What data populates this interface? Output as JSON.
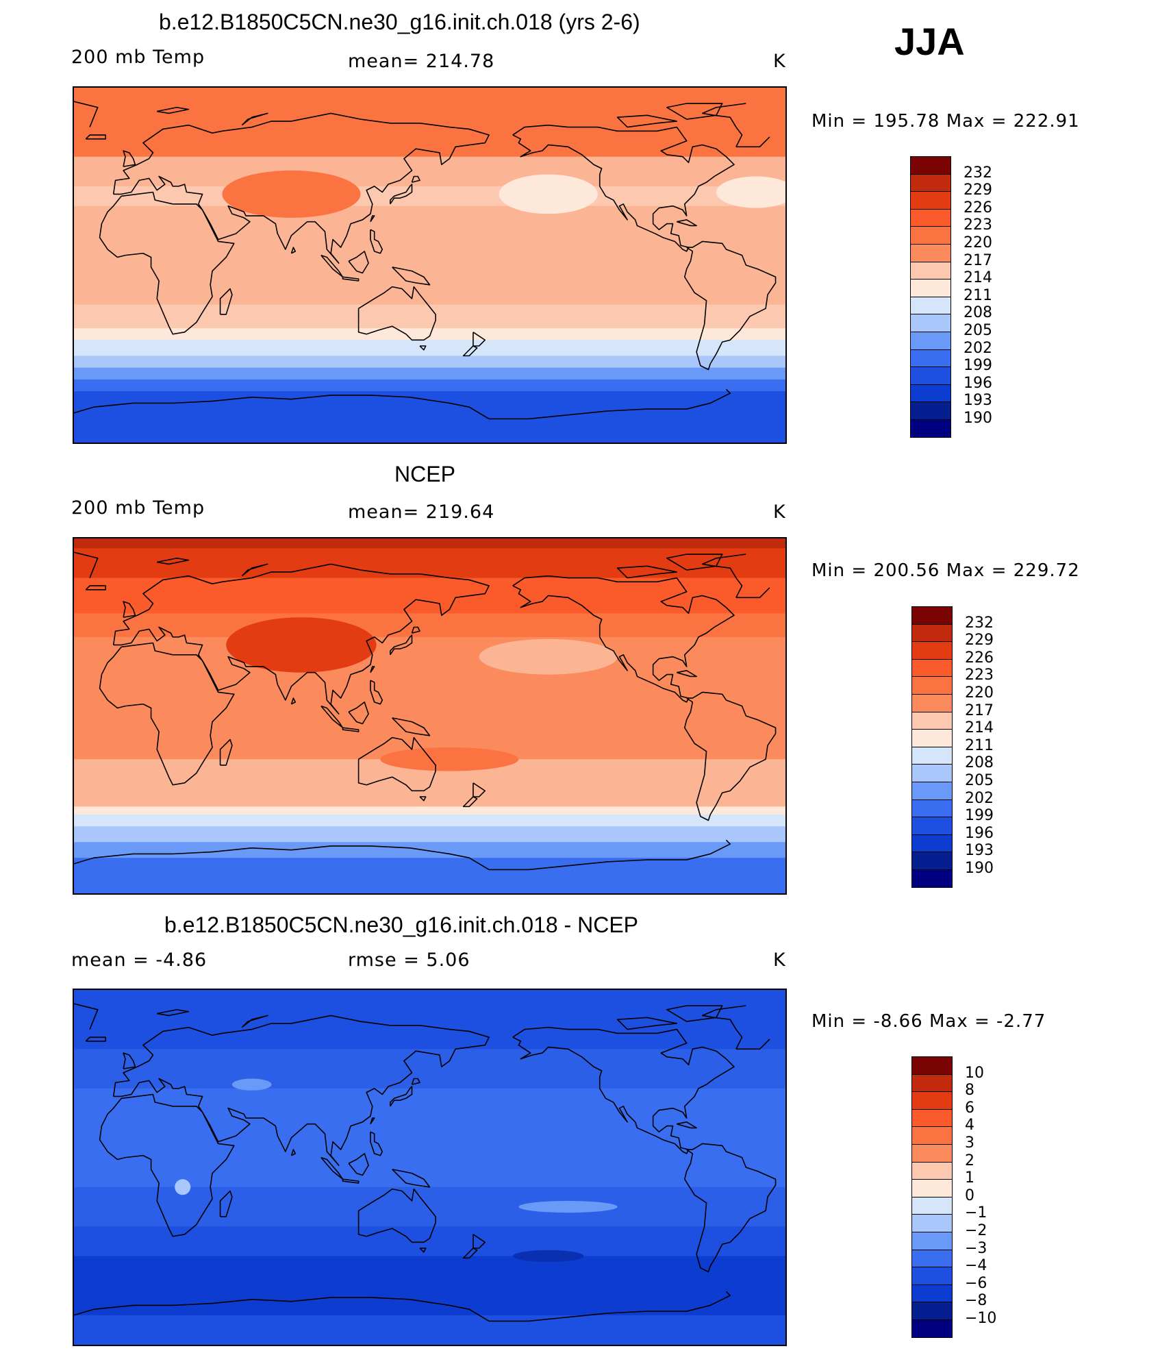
{
  "season": "JJA",
  "panels": [
    {
      "id": "model",
      "title": "b.e12.B1850C5CN.ne30_g16.init.ch.018 (yrs 2-6)",
      "left_label": "200 mb Temp",
      "center_label": "mean=  214.78",
      "units": "K",
      "minmax": "Min  =  195.78  Max  =  222.91",
      "colorbar_levels": [
        "232",
        "229",
        "226",
        "223",
        "220",
        "217",
        "214",
        "211",
        "208",
        "205",
        "202",
        "199",
        "196",
        "193",
        "190"
      ],
      "bands": [
        {
          "lat": 90,
          "color": "#fb7341"
        },
        {
          "lat": 55,
          "color": "#fcb594"
        },
        {
          "lat": 40,
          "color": "#fcc9b0"
        },
        {
          "lat": 30,
          "color": "#fcb594"
        },
        {
          "lat": 10,
          "color": "#fcb594"
        },
        {
          "lat": -20,
          "color": "#fcc9b0"
        },
        {
          "lat": -32,
          "color": "#fde8da"
        },
        {
          "lat": -38,
          "color": "#d5e6fb"
        },
        {
          "lat": -46,
          "color": "#a9c7fa"
        },
        {
          "lat": -52,
          "color": "#6a9af7"
        },
        {
          "lat": -58,
          "color": "#3a6ef0"
        },
        {
          "lat": -64,
          "color": "#1d4fe0"
        }
      ],
      "blobs": [
        {
          "lon": 80,
          "lat": 36,
          "rlon": 35,
          "rlat": 12,
          "color": "#fb7341"
        },
        {
          "lon": -150,
          "lat": 36,
          "rlon": 25,
          "rlat": 10,
          "color": "#fde8da"
        },
        {
          "lon": -45,
          "lat": 37,
          "rlon": 20,
          "rlat": 8,
          "color": "#fde8da"
        }
      ]
    },
    {
      "id": "obs",
      "title": "NCEP",
      "left_label": "200 mb Temp",
      "center_label": "mean=  219.64",
      "units": "K",
      "minmax": "Min  =  200.56  Max  =  229.72",
      "colorbar_levels": [
        "232",
        "229",
        "226",
        "223",
        "220",
        "217",
        "214",
        "211",
        "208",
        "205",
        "202",
        "199",
        "196",
        "193",
        "190"
      ],
      "bands": [
        {
          "lat": 90,
          "color": "#c22a0e"
        },
        {
          "lat": 85,
          "color": "#e33b12"
        },
        {
          "lat": 70,
          "color": "#fb5a2a"
        },
        {
          "lat": 52,
          "color": "#fb7341"
        },
        {
          "lat": 40,
          "color": "#fb8b5c"
        },
        {
          "lat": -22,
          "color": "#fcb594"
        },
        {
          "lat": -46,
          "color": "#fde8da"
        },
        {
          "lat": -50,
          "color": "#d5e6fb"
        },
        {
          "lat": -56,
          "color": "#a9c7fa"
        },
        {
          "lat": -64,
          "color": "#6a9af7"
        },
        {
          "lat": -72,
          "color": "#3a6ef0"
        }
      ],
      "blobs": [
        {
          "lon": 85,
          "lat": 36,
          "rlon": 38,
          "rlat": 14,
          "color": "#e33b12"
        },
        {
          "lon": -150,
          "lat": 30,
          "rlon": 35,
          "rlat": 9,
          "color": "#fcb594"
        },
        {
          "lon": 160,
          "lat": -22,
          "rlon": 35,
          "rlat": 6,
          "color": "#fb7341"
        }
      ]
    },
    {
      "id": "diff",
      "title": "b.e12.B1850C5CN.ne30_g16.init.ch.018 - NCEP",
      "left_label": "mean  =    -4.86",
      "center_label": "rmse  =     5.06",
      "units": "K",
      "minmax": "Min  =    -8.66  Max  =    -2.77",
      "colorbar_levels": [
        "10",
        "8",
        "6",
        "4",
        "3",
        "2",
        "1",
        "0",
        "−1",
        "−2",
        "−3",
        "−4",
        "−6",
        "−8",
        "−10"
      ],
      "bands": [
        {
          "lat": 90,
          "color": "#1d4fe0"
        },
        {
          "lat": 60,
          "color": "#2c5fe8"
        },
        {
          "lat": 40,
          "color": "#3a6ef0"
        },
        {
          "lat": -10,
          "color": "#2c5fe8"
        },
        {
          "lat": -30,
          "color": "#1d4fe0"
        },
        {
          "lat": -45,
          "color": "#0c3dd0"
        },
        {
          "lat": -75,
          "color": "#1d4fe0"
        }
      ],
      "blobs": [
        {
          "lon": 60,
          "lat": 42,
          "rlon": 10,
          "rlat": 3,
          "color": "#6a9af7"
        },
        {
          "lon": 25,
          "lat": -10,
          "rlon": 4,
          "rlat": 4,
          "color": "#a9c7fa"
        },
        {
          "lon": -140,
          "lat": -20,
          "rlon": 25,
          "rlat": 3,
          "color": "#6a9af7"
        },
        {
          "lon": -150,
          "lat": -45,
          "rlon": 18,
          "rlat": 3,
          "color": "#0a2fb0"
        }
      ]
    }
  ],
  "colorbar_colors": [
    "#7a0403",
    "#c22a0e",
    "#e33b12",
    "#fb5a2a",
    "#fb7341",
    "#fb8b5c",
    "#fcc9b0",
    "#fde8da",
    "#d5e6fb",
    "#a9c7fa",
    "#6a9af7",
    "#3a6ef0",
    "#1d4fe0",
    "#0c3dd0",
    "#061f90",
    "#000080"
  ],
  "coastline_color": "#000000"
}
